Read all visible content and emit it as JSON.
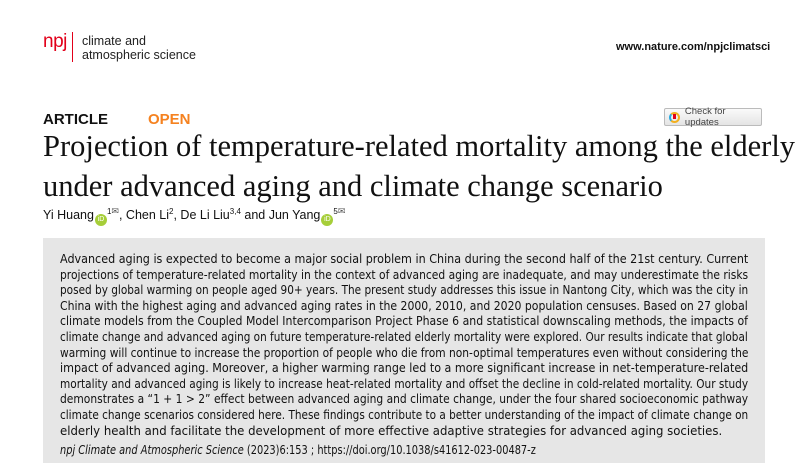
{
  "header": {
    "logo": "npj",
    "journal_line1": "climate and",
    "journal_line2": "atmospheric science",
    "url": "www.nature.com/npjclimatsci"
  },
  "article_type": "ARTICLE",
  "access": "OPEN",
  "check_updates": "Check for updates",
  "title_line1": "Projection of temperature-related mortality among the elderly",
  "title_line2": "under advanced aging and climate change scenario",
  "authors": [
    {
      "name": "Yi Huang",
      "sup": "1",
      "orcid": true,
      "email": true
    },
    {
      "name": "Chen Li",
      "sup": "2"
    },
    {
      "name": "De Li Liu",
      "sup": "3,4"
    },
    {
      "name": "Jun Yang",
      "sup": "5",
      "orcid": true,
      "email": true
    }
  ],
  "author_sep": ", ",
  "author_and": " and ",
  "abstract_lines": [
    "Advanced aging is expected to become a major social problem in China during the second half of the 21st century. Current",
    "projections of temperature-related mortality in the context of advanced aging are inadequate, and may underestimate the risks",
    "posed by global warming on people aged 90+ years. The present study addresses this issue in Nantong City, which was the city in",
    "China with the highest aging and advanced aging rates in the 2000, 2010, and 2020 population censuses. Based on 27 global",
    "climate models from the Coupled Model Intercomparison Project Phase 6 and statistical downscaling methods, the impacts of",
    "climate change and advanced aging on future temperature-related elderly mortality were explored. Our results indicate that global",
    "warming will continue to increase the proportion of people who die from non-optimal temperatures even without considering the",
    "impact of advanced aging. Moreover, a higher warming range led to a more significant increase in net-temperature-related",
    "mortality and advanced aging is likely to increase heat-related mortality and offset the decline in cold-related mortality. Our study",
    "demonstrates a “1 + 1 > 2” effect between advanced aging and climate change, under the four shared socioeconomic pathway",
    "climate change scenarios considered here. These findings contribute to a better understanding of the impact of climate change on",
    "elderly health and facilitate the development of more effective adaptive strategies for advanced aging societies."
  ],
  "citation": {
    "journal": "npj Climate and Atmospheric Science",
    "rest": " (2023)6:153 ; https://doi.org/10.1038/s41612-023-00487-z"
  },
  "colors": {
    "brand": "#e2001a",
    "open": "#f58220",
    "orcid": "#a6ce39",
    "abstract_bg": "#e6e6e6"
  }
}
